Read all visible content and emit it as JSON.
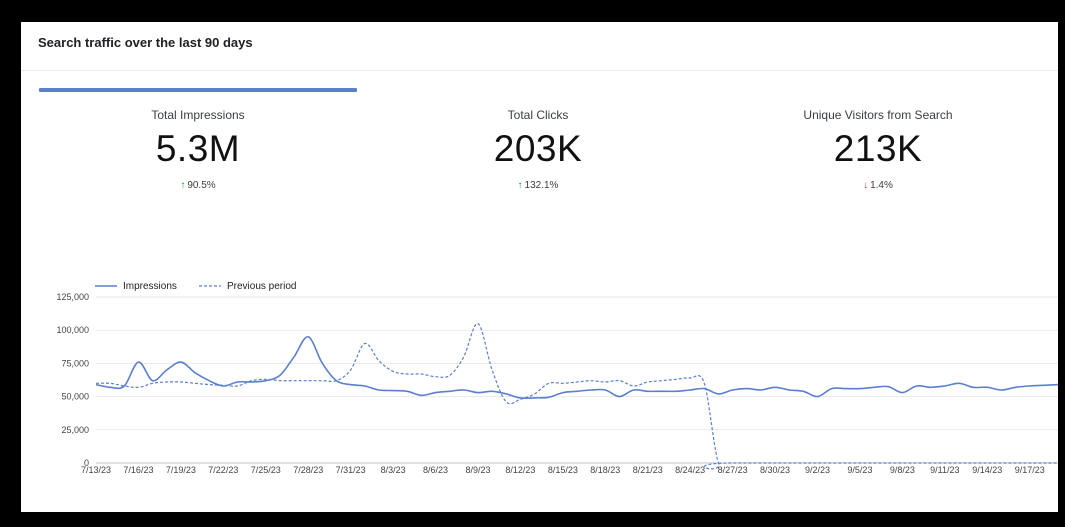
{
  "header": {
    "title": "Search traffic over the last 90 days"
  },
  "metrics": [
    {
      "label": "Total Impressions",
      "value": "5.3M",
      "change": "90.5%",
      "direction": "up",
      "arrow": "↑"
    },
    {
      "label": "Total Clicks",
      "value": "203K",
      "change": "132.1%",
      "direction": "up",
      "arrow": "↑"
    },
    {
      "label": "Unique Visitors from Search",
      "value": "213K",
      "change": "1.4%",
      "direction": "down",
      "arrow": "↓"
    }
  ],
  "colors": {
    "accent": "#5b7fcc",
    "up": "#1e8e3e",
    "down": "#d93025",
    "grid": "#e8eaed"
  },
  "chart_data": {
    "type": "line",
    "title": "",
    "xlabel": "",
    "ylabel": "",
    "ylim": [
      0,
      125000
    ],
    "yticks": [
      0,
      25000,
      50000,
      75000,
      100000,
      125000
    ],
    "ytick_labels": [
      "0",
      "25,000",
      "50,000",
      "75,000",
      "100,000",
      "125,000"
    ],
    "xrange": [
      "7/13/23",
      "9/19/23"
    ],
    "xticks": [
      "7/13/23",
      "7/16/23",
      "7/19/23",
      "7/22/23",
      "7/25/23",
      "7/28/23",
      "7/31/23",
      "8/3/23",
      "8/6/23",
      "8/9/23",
      "8/12/23",
      "8/15/23",
      "8/18/23",
      "8/21/23",
      "8/24/23",
      "8/27/23",
      "8/30/23",
      "9/2/23",
      "9/5/23",
      "9/8/23",
      "9/11/23",
      "9/14/23",
      "9/17/23"
    ],
    "legend": "top-left",
    "grid": true,
    "series": [
      {
        "name": "Impressions",
        "style": "solid",
        "color": "#5b7fcc",
        "points": [
          [
            "7/13/23",
            59000
          ],
          [
            "7/14/23",
            57000
          ],
          [
            "7/15/23",
            58000
          ],
          [
            "7/16/23",
            76000
          ],
          [
            "7/17/23",
            62000
          ],
          [
            "7/18/23",
            70000
          ],
          [
            "7/19/23",
            76000
          ],
          [
            "7/20/23",
            68000
          ],
          [
            "7/21/23",
            62000
          ],
          [
            "7/22/23",
            58000
          ],
          [
            "7/23/23",
            61000
          ],
          [
            "7/24/23",
            61000
          ],
          [
            "7/25/23",
            62000
          ],
          [
            "7/26/23",
            66000
          ],
          [
            "7/27/23",
            80000
          ],
          [
            "7/28/23",
            95000
          ],
          [
            "7/29/23",
            75000
          ],
          [
            "7/30/23",
            62000
          ],
          [
            "7/31/23",
            59000
          ],
          [
            "8/1/23",
            58000
          ],
          [
            "8/2/23",
            55000
          ],
          [
            "8/3/23",
            54500
          ],
          [
            "8/4/23",
            54000
          ],
          [
            "8/5/23",
            51000
          ],
          [
            "8/6/23",
            53000
          ],
          [
            "8/7/23",
            54000
          ],
          [
            "8/8/23",
            55000
          ],
          [
            "8/9/23",
            53000
          ],
          [
            "8/10/23",
            54000
          ],
          [
            "8/11/23",
            52000
          ],
          [
            "8/12/23",
            49000
          ],
          [
            "8/13/23",
            49000
          ],
          [
            "8/14/23",
            49500
          ],
          [
            "8/15/23",
            53000
          ],
          [
            "8/16/23",
            54000
          ],
          [
            "8/17/23",
            55000
          ],
          [
            "8/18/23",
            55000
          ],
          [
            "8/19/23",
            50000
          ],
          [
            "8/20/23",
            55000
          ],
          [
            "8/21/23",
            54000
          ],
          [
            "8/22/23",
            54000
          ],
          [
            "8/23/23",
            54000
          ],
          [
            "8/24/23",
            55000
          ],
          [
            "8/25/23",
            56000
          ],
          [
            "8/26/23",
            52000
          ],
          [
            "8/27/23",
            55000
          ],
          [
            "8/28/23",
            56000
          ],
          [
            "8/29/23",
            55000
          ],
          [
            "8/30/23",
            57000
          ],
          [
            "8/31/23",
            55000
          ],
          [
            "9/1/23",
            54000
          ],
          [
            "9/2/23",
            50000
          ],
          [
            "9/3/23",
            56000
          ],
          [
            "9/4/23",
            56000
          ],
          [
            "9/5/23",
            56000
          ],
          [
            "9/6/23",
            57000
          ],
          [
            "9/7/23",
            57500
          ],
          [
            "9/8/23",
            53000
          ],
          [
            "9/9/23",
            58000
          ],
          [
            "9/10/23",
            57000
          ],
          [
            "9/11/23",
            58000
          ],
          [
            "9/12/23",
            60000
          ],
          [
            "9/13/23",
            57000
          ],
          [
            "9/14/23",
            57000
          ],
          [
            "9/15/23",
            55000
          ],
          [
            "9/16/23",
            57000
          ],
          [
            "9/17/23",
            58000
          ],
          [
            "9/18/23",
            58500
          ],
          [
            "9/19/23",
            59000
          ]
        ]
      },
      {
        "name": "Previous period",
        "style": "dashed",
        "color": "#5b7fcc",
        "points": [
          [
            "7/13/23",
            60000
          ],
          [
            "7/14/23",
            60000
          ],
          [
            "7/15/23",
            58000
          ],
          [
            "7/16/23",
            57000
          ],
          [
            "7/17/23",
            60000
          ],
          [
            "7/18/23",
            61000
          ],
          [
            "7/19/23",
            61000
          ],
          [
            "7/20/23",
            60000
          ],
          [
            "7/21/23",
            59000
          ],
          [
            "7/22/23",
            58500
          ],
          [
            "7/23/23",
            58000
          ],
          [
            "7/24/23",
            62000
          ],
          [
            "7/25/23",
            63000
          ],
          [
            "7/26/23",
            62000
          ],
          [
            "7/27/23",
            62000
          ],
          [
            "7/28/23",
            62000
          ],
          [
            "7/29/23",
            62000
          ],
          [
            "7/30/23",
            62000
          ],
          [
            "7/31/23",
            70000
          ],
          [
            "8/1/23",
            90000
          ],
          [
            "8/2/23",
            77000
          ],
          [
            "8/3/23",
            69000
          ],
          [
            "8/4/23",
            67000
          ],
          [
            "8/5/23",
            67000
          ],
          [
            "8/6/23",
            65000
          ],
          [
            "8/7/23",
            66000
          ],
          [
            "8/8/23",
            80000
          ],
          [
            "8/9/23",
            105000
          ],
          [
            "8/10/23",
            70000
          ],
          [
            "8/11/23",
            46000
          ],
          [
            "8/12/23",
            48000
          ],
          [
            "8/13/23",
            52000
          ],
          [
            "8/14/23",
            60000
          ],
          [
            "8/15/23",
            60000
          ],
          [
            "8/16/23",
            61000
          ],
          [
            "8/17/23",
            62000
          ],
          [
            "8/18/23",
            61000
          ],
          [
            "8/19/23",
            62000
          ],
          [
            "8/20/23",
            58000
          ],
          [
            "8/21/23",
            61000
          ],
          [
            "8/22/23",
            62000
          ],
          [
            "8/23/23",
            63000
          ],
          [
            "8/24/23",
            64000
          ],
          [
            "8/25/23",
            60000
          ],
          [
            "8/26/23",
            0
          ],
          [
            "8/27/23",
            0
          ],
          [
            "9/19/23",
            0
          ]
        ]
      }
    ]
  }
}
